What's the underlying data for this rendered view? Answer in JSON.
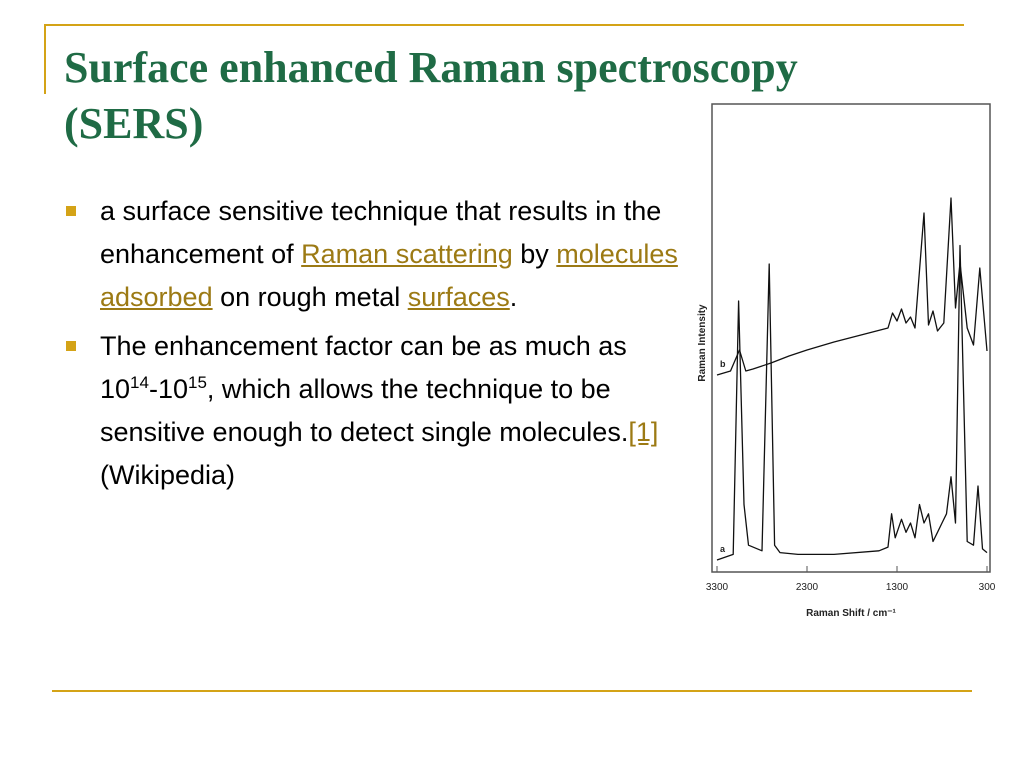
{
  "title": {
    "line1": "Surface enhanced Raman spectroscopy",
    "line2": "(SERS)"
  },
  "bullets": [
    {
      "t1": "a surface sensitive technique that results in the enhancement of ",
      "link1": "Raman scattering",
      "t2": " by ",
      "link2": "molecules adsorbed",
      "t3": " on rough metal ",
      "link3": "surfaces",
      "t4": "."
    },
    {
      "t1": "The enhancement factor can be as much as 10",
      "sup1": "14",
      "t2": "-10",
      "sup2": "15",
      "t3": ", which allows the technique to be sensitive enough to detect single molecules.",
      "link1": "[1]",
      "t4": "(Wikipedia)"
    }
  ],
  "colors": {
    "title": "#1f6b45",
    "accent": "#d4a317",
    "link": "#9c7a14"
  },
  "chart_data": {
    "type": "line",
    "title": "",
    "xlabel": "Raman Shift / cm⁻¹",
    "ylabel": "Raman Intensity",
    "x_ticks": [
      "3300",
      "2300",
      "1300",
      "300"
    ],
    "xlim": [
      3300,
      300
    ],
    "x_reversed": true,
    "series": [
      {
        "name": "b",
        "x": [
          3300,
          3150,
          3050,
          2980,
          2900,
          2700,
          2500,
          2300,
          2000,
          1700,
          1400,
          1350,
          1300,
          1250,
          1200,
          1150,
          1100,
          1000,
          950,
          900,
          850,
          780,
          700,
          650,
          600,
          520,
          450,
          380,
          300
        ],
        "values": [
          0.08,
          0.12,
          0.33,
          0.12,
          0.14,
          0.2,
          0.27,
          0.33,
          0.41,
          0.48,
          0.55,
          0.7,
          0.62,
          0.74,
          0.6,
          0.66,
          0.55,
          1.7,
          0.58,
          0.72,
          0.52,
          0.6,
          1.85,
          0.75,
          1.2,
          0.55,
          0.38,
          1.15,
          0.32
        ]
      },
      {
        "name": "a",
        "x": [
          3300,
          3120,
          3060,
          3000,
          2950,
          2800,
          2720,
          2660,
          2600,
          2400,
          2000,
          1500,
          1400,
          1360,
          1320,
          1250,
          1200,
          1150,
          1100,
          1050,
          1000,
          950,
          900,
          850,
          800,
          750,
          700,
          650,
          600,
          520,
          450,
          400,
          350,
          300
        ],
        "values": [
          0.0,
          0.03,
          1.4,
          0.3,
          0.08,
          0.05,
          1.6,
          0.08,
          0.04,
          0.03,
          0.03,
          0.05,
          0.07,
          0.25,
          0.12,
          0.22,
          0.15,
          0.2,
          0.12,
          0.3,
          0.2,
          0.25,
          0.1,
          0.15,
          0.2,
          0.25,
          0.45,
          0.2,
          1.7,
          0.1,
          0.08,
          0.4,
          0.06,
          0.04
        ]
      }
    ]
  }
}
